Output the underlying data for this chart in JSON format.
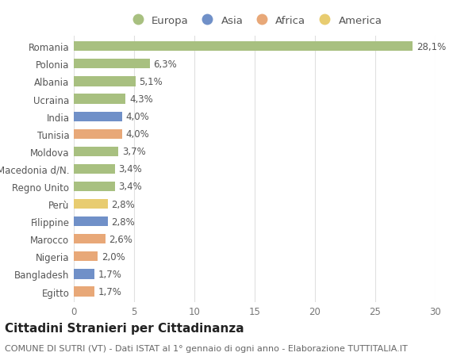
{
  "categories": [
    "Romania",
    "Polonia",
    "Albania",
    "Ucraina",
    "India",
    "Tunisia",
    "Moldova",
    "Macedonia d/N.",
    "Regno Unito",
    "Perù",
    "Filippine",
    "Marocco",
    "Nigeria",
    "Bangladesh",
    "Egitto"
  ],
  "values": [
    28.1,
    6.3,
    5.1,
    4.3,
    4.0,
    4.0,
    3.7,
    3.4,
    3.4,
    2.8,
    2.8,
    2.6,
    2.0,
    1.7,
    1.7
  ],
  "labels": [
    "28,1%",
    "6,3%",
    "5,1%",
    "4,3%",
    "4,0%",
    "4,0%",
    "3,7%",
    "3,4%",
    "3,4%",
    "2,8%",
    "2,8%",
    "2,6%",
    "2,0%",
    "1,7%",
    "1,7%"
  ],
  "continent": [
    "Europa",
    "Europa",
    "Europa",
    "Europa",
    "Asia",
    "Africa",
    "Europa",
    "Europa",
    "Europa",
    "America",
    "Asia",
    "Africa",
    "Africa",
    "Asia",
    "Africa"
  ],
  "continent_colors": {
    "Europa": "#a8c080",
    "Asia": "#7090c8",
    "Africa": "#e8a878",
    "America": "#e8cc70"
  },
  "legend_order": [
    "Europa",
    "Asia",
    "Africa",
    "America"
  ],
  "xlim": [
    0,
    30
  ],
  "xticks": [
    0,
    5,
    10,
    15,
    20,
    25,
    30
  ],
  "title": "Cittadini Stranieri per Cittadinanza",
  "subtitle": "COMUNE DI SUTRI (VT) - Dati ISTAT al 1° gennaio di ogni anno - Elaborazione TUTTITALIA.IT",
  "background_color": "#ffffff",
  "grid_color": "#e0e0e0",
  "bar_height": 0.55,
  "label_fontsize": 8.5,
  "tick_fontsize": 8.5,
  "title_fontsize": 11,
  "subtitle_fontsize": 8
}
